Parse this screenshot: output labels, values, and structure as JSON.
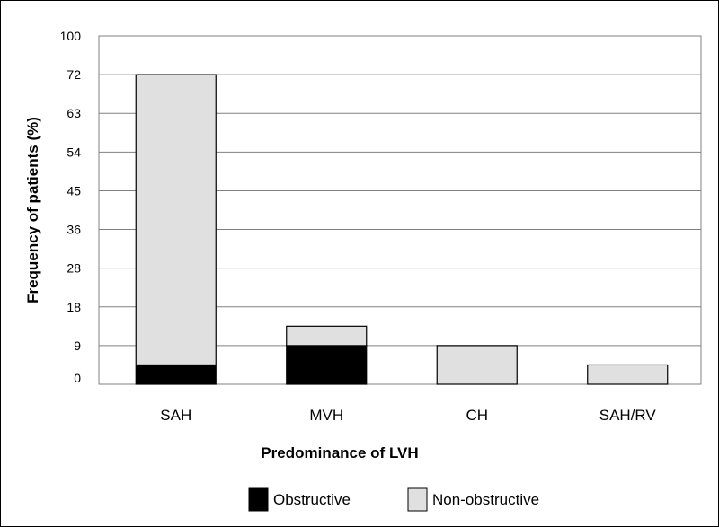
{
  "chart_data": {
    "type": "bar",
    "stacked": true,
    "title": "",
    "xlabel": "Predominance of LVH",
    "ylabel": "Frequency of patients (%)",
    "categories": [
      "SAH",
      "MVH",
      "CH",
      "SAH/RV"
    ],
    "yticks": [
      "0",
      "9",
      "18",
      "28",
      "36",
      "45",
      "54",
      "63",
      "72",
      "100"
    ],
    "series": [
      {
        "name": "Obstructive",
        "values": [
          4.5,
          9,
          0,
          0
        ],
        "color": "#000000"
      },
      {
        "name": "Non-obstructive",
        "values": [
          67.5,
          4.5,
          9,
          4.5
        ],
        "color": "#e0e0e0"
      }
    ],
    "grid": true,
    "legend": "bottom"
  }
}
